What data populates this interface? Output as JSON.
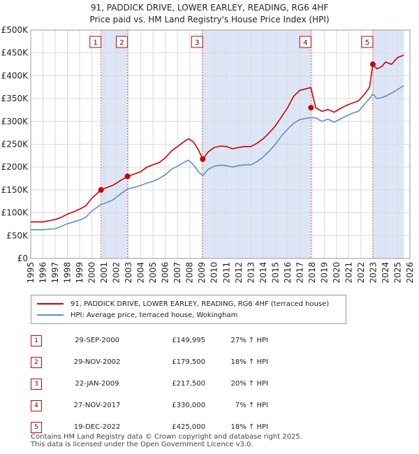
{
  "title_line1": "91, PADDICK DRIVE, LOWER EARLEY, READING, RG6 4HF",
  "title_line2": "Price paid vs. HM Land Registry's House Price Index (HPI)",
  "chart_data": {
    "type": "line",
    "title": "91, PADDICK DRIVE, LOWER EARLEY, READING, RG6 4HF",
    "subtitle": "Price paid vs. HM Land Registry's House Price Index (HPI)",
    "xlim": [
      1995,
      2026
    ],
    "ylim": [
      0,
      500000
    ],
    "yticks": [
      0,
      50000,
      100000,
      150000,
      200000,
      250000,
      300000,
      350000,
      400000,
      450000,
      500000
    ],
    "ytick_labels": [
      "£0",
      "£50K",
      "£100K",
      "£150K",
      "£200K",
      "£250K",
      "£300K",
      "£350K",
      "£400K",
      "£450K",
      "£500K"
    ],
    "xticks": [
      1995,
      1996,
      1997,
      1998,
      1999,
      2000,
      2001,
      2002,
      2003,
      2004,
      2005,
      2006,
      2007,
      2008,
      2009,
      2010,
      2011,
      2012,
      2013,
      2014,
      2015,
      2016,
      2017,
      2018,
      2019,
      2020,
      2021,
      2022,
      2023,
      2024,
      2025,
      2026
    ],
    "grid": true,
    "colors": {
      "property": "#cc0000",
      "hpi": "#5b8fc9",
      "shade": "#dde6f6",
      "marker": "#cc0000"
    },
    "series": [
      {
        "name": "91, PADDICK DRIVE, LOWER EARLEY, READING, RG6 4HF (terraced house)",
        "x": [
          1995,
          1996,
          1997,
          1997.5,
          1998,
          1998.5,
          1999,
          1999.5,
          2000,
          2000.75,
          2001.2,
          2001.7,
          2002.3,
          2002.91,
          2003.5,
          2004,
          2004.5,
          2005,
          2005.5,
          2006,
          2006.5,
          2007,
          2007.5,
          2007.9,
          2008.3,
          2008.7,
          2009.06,
          2009.5,
          2010,
          2010.5,
          2011,
          2011.5,
          2012,
          2012.5,
          2013,
          2013.5,
          2014,
          2014.5,
          2015,
          2015.5,
          2016,
          2016.5,
          2017,
          2017.6,
          2017.9,
          2018.3,
          2018.8,
          2019.3,
          2019.8,
          2020.3,
          2020.8,
          2021.3,
          2021.8,
          2022.3,
          2022.7,
          2022.97,
          2023.3,
          2023.7,
          2024,
          2024.5,
          2025,
          2025.5
        ],
        "values": [
          80000,
          80000,
          85000,
          90000,
          97000,
          102000,
          108000,
          115000,
          132000,
          149995,
          155000,
          160000,
          170000,
          179500,
          185000,
          190000,
          200000,
          205000,
          210000,
          220000,
          235000,
          245000,
          255000,
          262000,
          255000,
          238000,
          217500,
          233000,
          243000,
          246000,
          245000,
          240000,
          243000,
          245000,
          245000,
          252000,
          262000,
          275000,
          290000,
          310000,
          330000,
          355000,
          368000,
          372000,
          374000,
          330000,
          322000,
          326000,
          320000,
          328000,
          335000,
          340000,
          345000,
          360000,
          375000,
          425000,
          415000,
          420000,
          430000,
          425000,
          440000,
          445000
        ]
      },
      {
        "name": "HPI: Average price, terraced house, Wokingham",
        "x": [
          1995,
          1996,
          1997,
          1997.5,
          1998,
          1998.5,
          1999,
          1999.5,
          2000,
          2000.75,
          2001.2,
          2001.7,
          2002.3,
          2002.91,
          2003.5,
          2004,
          2004.5,
          2005,
          2005.5,
          2006,
          2006.5,
          2007,
          2007.5,
          2007.9,
          2008.3,
          2008.7,
          2009.06,
          2009.5,
          2010,
          2010.5,
          2011,
          2011.5,
          2012,
          2012.5,
          2013,
          2013.5,
          2014,
          2014.5,
          2015,
          2015.5,
          2016,
          2016.5,
          2017,
          2017.6,
          2017.9,
          2018.3,
          2018.8,
          2019.3,
          2019.8,
          2020.3,
          2020.8,
          2021.3,
          2021.8,
          2022.3,
          2022.7,
          2022.97,
          2023.3,
          2023.7,
          2024,
          2024.5,
          2025,
          2025.5
        ],
        "values": [
          63000,
          63000,
          65000,
          70000,
          76000,
          80000,
          84000,
          90000,
          104000,
          118000,
          122000,
          128000,
          140000,
          152000,
          156000,
          160000,
          165000,
          169000,
          175000,
          183000,
          195000,
          202000,
          210000,
          215000,
          205000,
          190000,
          181000,
          195000,
          202000,
          204000,
          203000,
          200000,
          203000,
          205000,
          205000,
          212000,
          222000,
          235000,
          250000,
          268000,
          283000,
          296000,
          304000,
          307000,
          308000,
          308000,
          300000,
          305000,
          298000,
          305000,
          312000,
          318000,
          322000,
          338000,
          350000,
          360000,
          350000,
          352000,
          355000,
          362000,
          370000,
          378000
        ]
      }
    ],
    "sales": [
      {
        "n": "1",
        "x": 2000.75,
        "date": "29-SEP-2000",
        "price": "£149,995",
        "value": 149995,
        "hpi": "27% ↑ HPI"
      },
      {
        "n": "2",
        "x": 2002.91,
        "date": "29-NOV-2002",
        "price": "£179,500",
        "value": 179500,
        "hpi": "18% ↑ HPI"
      },
      {
        "n": "3",
        "x": 2009.06,
        "date": "22-JAN-2009",
        "price": "£217,500",
        "value": 217500,
        "hpi": "20% ↑ HPI"
      },
      {
        "n": "4",
        "x": 2017.91,
        "date": "27-NOV-2017",
        "price": "£330,000",
        "value": 330000,
        "hpi": "7% ↑ HPI"
      },
      {
        "n": "5",
        "x": 2022.97,
        "date": "19-DEC-2022",
        "price": "£425,000",
        "value": 425000,
        "hpi": "18% ↑ HPI"
      }
    ],
    "shaded_ranges": [
      [
        2000.75,
        2002.91
      ],
      [
        2009.06,
        2017.91
      ],
      [
        2022.97,
        2025.5
      ]
    ]
  },
  "legend": {
    "property": "91, PADDICK DRIVE, LOWER EARLEY, READING, RG6 4HF (terraced house)",
    "hpi": "HPI: Average price, terraced house, Wokingham"
  },
  "footer": {
    "line1": "Contains HM Land Registry data © Crown copyright and database right 2025.",
    "line2": "This data is licensed under the Open Government Licence v3.0."
  }
}
